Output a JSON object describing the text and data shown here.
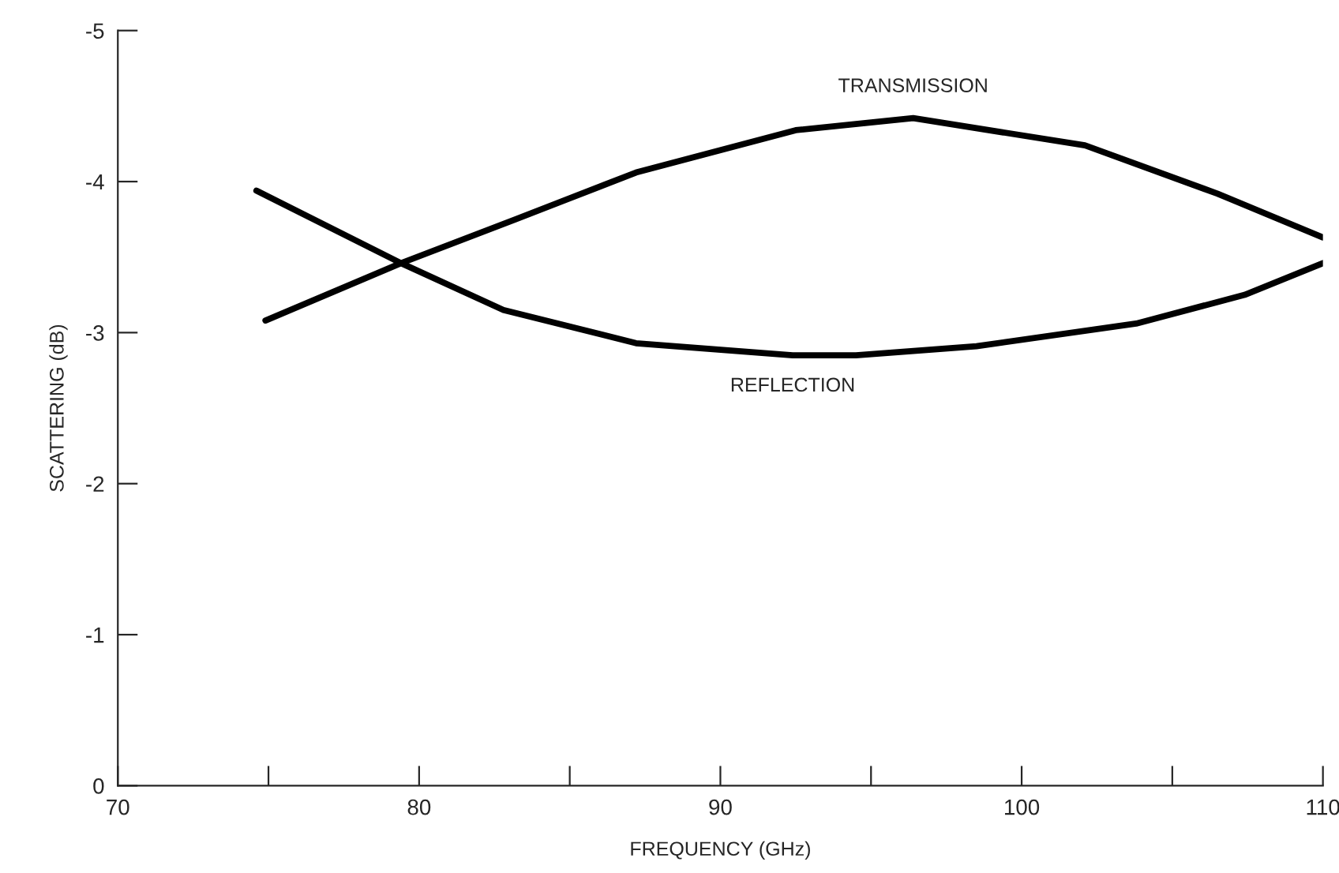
{
  "chart_data": {
    "type": "line",
    "xlabel": "FREQUENCY (GHz)",
    "ylabel": "SCATTERING (dB)",
    "xlim": [
      70,
      110
    ],
    "ylim": [
      0,
      -5
    ],
    "xticks": [
      70,
      {
        "value": 75,
        "label": null
      },
      80,
      {
        "value": 85,
        "label": null
      },
      90,
      {
        "value": 95,
        "label": null
      },
      100,
      {
        "value": 105,
        "label": null
      },
      110
    ],
    "yticks": [
      0,
      -1,
      -2,
      -3,
      -4,
      -5
    ],
    "grid": false,
    "legend": false,
    "marker": "none",
    "line_style": "solid",
    "series": [
      {
        "name": "TRANSMISSION",
        "color": "#000000",
        "x": [
          74.9,
          79.4,
          83.2,
          87.2,
          92.5,
          96.4,
          102.1,
          106.5,
          110
        ],
        "values": [
          -3.08,
          -3.46,
          -3.75,
          -4.06,
          -4.34,
          -4.42,
          -4.24,
          -3.92,
          -3.63
        ]
      },
      {
        "name": "REFLECTION",
        "color": "#000000",
        "x": [
          74.6,
          79.4,
          82.8,
          87.2,
          92.4,
          94.5,
          98.5,
          103.8,
          107.4,
          110
        ],
        "values": [
          -3.94,
          -3.46,
          -3.15,
          -2.93,
          -2.85,
          -2.85,
          -2.91,
          -3.06,
          -3.25,
          -3.46
        ]
      }
    ]
  }
}
